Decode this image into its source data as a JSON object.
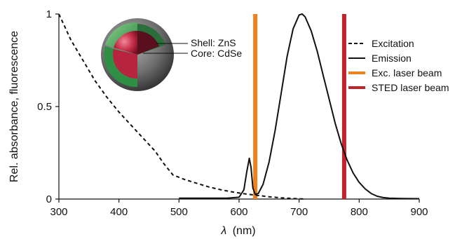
{
  "chart_data": {
    "type": "line",
    "xlabel_symbol": "λ",
    "xlabel_unit": "(nm)",
    "ylabel": "Rel. absorbance, fluorescence",
    "xlim": [
      300,
      900
    ],
    "ylim": [
      0,
      1
    ],
    "x_ticks": [
      "300",
      "400",
      "500",
      "600",
      "700",
      "800",
      "900"
    ],
    "y_ticks": [
      "0",
      "0.5",
      "1"
    ],
    "legend_position": "top-right",
    "legend": [
      {
        "label": "Excitation",
        "style": "dashed",
        "color": "#111111"
      },
      {
        "label": "Emission",
        "style": "solid",
        "color": "#111111"
      },
      {
        "label": "Exc. laser beam",
        "style": "bar",
        "color": "#f0821e"
      },
      {
        "label": "STED laser beam",
        "style": "bar",
        "color": "#c0242c"
      }
    ],
    "series": [
      {
        "name": "Excitation",
        "style": "dashed",
        "color": "#111111",
        "x": [
          300,
          310,
          320,
          340,
          360,
          380,
          400,
          420,
          440,
          460,
          475,
          490,
          510,
          530,
          550,
          570,
          590,
          610,
          630,
          650,
          670,
          690,
          710
        ],
        "y": [
          1.0,
          0.93,
          0.86,
          0.75,
          0.64,
          0.55,
          0.47,
          0.4,
          0.33,
          0.26,
          0.19,
          0.13,
          0.105,
          0.085,
          0.065,
          0.05,
          0.038,
          0.028,
          0.02,
          0.012,
          0.007,
          0.003,
          0.0
        ]
      },
      {
        "name": "Emission",
        "style": "solid",
        "color": "#111111",
        "x": [
          500,
          540,
          580,
          600,
          608,
          613,
          617,
          620,
          623,
          627,
          632,
          640,
          650,
          660,
          670,
          680,
          690,
          700,
          705,
          710,
          720,
          730,
          740,
          750,
          760,
          770,
          780,
          790,
          800,
          810,
          820,
          830,
          840,
          850,
          870,
          900
        ],
        "y": [
          0.005,
          0.005,
          0.005,
          0.01,
          0.05,
          0.15,
          0.22,
          0.17,
          0.06,
          0.025,
          0.03,
          0.08,
          0.2,
          0.37,
          0.57,
          0.77,
          0.92,
          0.995,
          1.0,
          0.985,
          0.91,
          0.8,
          0.67,
          0.54,
          0.41,
          0.3,
          0.21,
          0.14,
          0.09,
          0.055,
          0.03,
          0.015,
          0.008,
          0.005,
          0.003,
          0.002
        ]
      }
    ],
    "laser_lines": [
      {
        "name": "Exc. laser beam",
        "x": 627,
        "color": "#f0821e"
      },
      {
        "name": "STED laser beam",
        "x": 775,
        "color": "#c0242c"
      }
    ],
    "inset": {
      "shell_label": "Shell: ZnS",
      "core_label": "Core: CdSe"
    }
  }
}
